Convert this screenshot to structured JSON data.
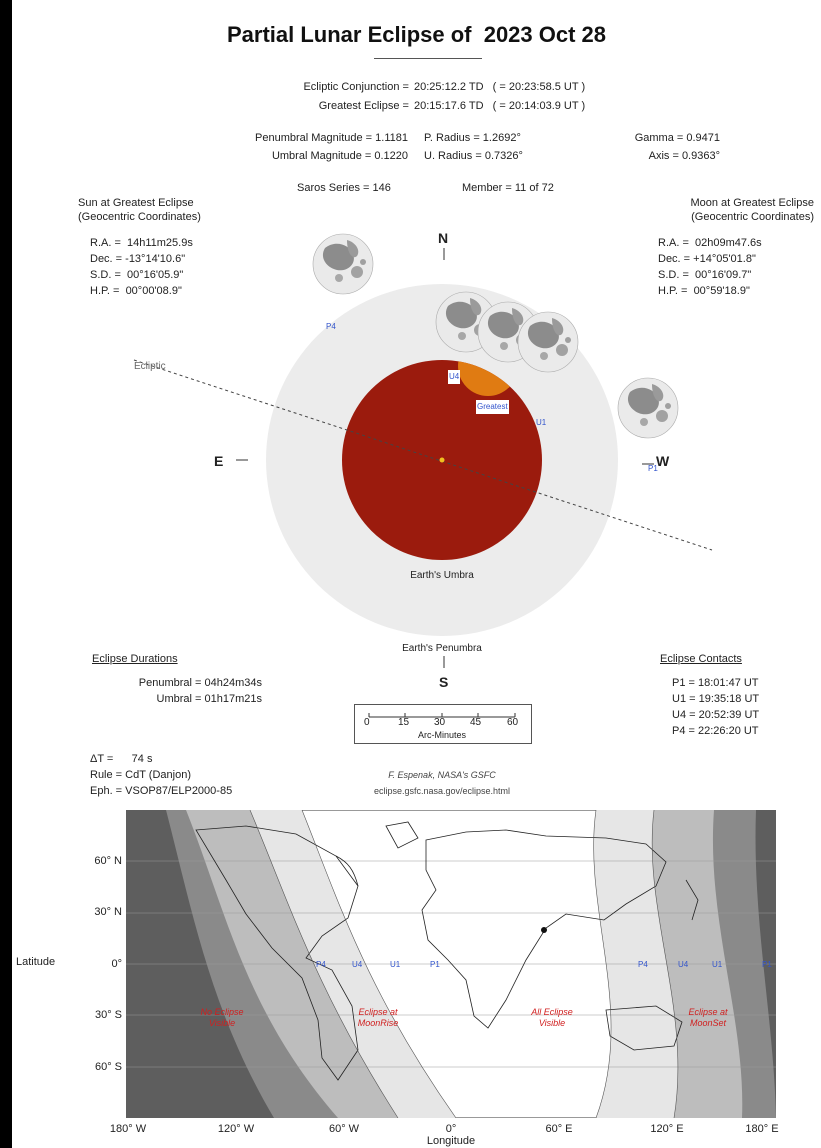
{
  "title": "Partial Lunar Eclipse of  2023 Oct 28",
  "conjunction": {
    "label": "Ecliptic Conjunction = ",
    "value": "20:25:12.2 TD   ( = 20:23:58.5 UT )"
  },
  "greatest": {
    "label": "Greatest Eclipse = ",
    "value": "20:15:17.6 TD   ( = 20:14:03.9 UT )"
  },
  "params": {
    "pen_mag": "Penumbral Magnitude = 1.1181",
    "umb_mag": "Umbral Magnitude = 0.1220",
    "p_radius": "P. Radius = 1.2692°",
    "u_radius": "U. Radius = 0.7326°",
    "gamma": "Gamma = 0.9471",
    "axis": "Axis = 0.9363°",
    "saros": "Saros Series = 146",
    "member": "Member = 11 of 72"
  },
  "sun": {
    "heading1": "Sun at Greatest Eclipse",
    "heading2": "(Geocentric Coordinates)",
    "ra": "R.A. =  14h11m25.9s",
    "dec": "Dec. = -13°14'10.6\"",
    "sd": "S.D. =  00°16'05.9\"",
    "hp": "H.P. =  00°00'08.9\""
  },
  "moon": {
    "heading1": "Moon at Greatest Eclipse",
    "heading2": "(Geocentric Coordinates)",
    "ra": "R.A. =  02h09m47.6s",
    "dec": "Dec. = +14°05'01.8\"",
    "sd": "S.D. =  00°16'09.7\"",
    "hp": "H.P. =  00°59'18.9\""
  },
  "diagram": {
    "north": "N",
    "south": "S",
    "east": "E",
    "west": "W",
    "ecliptic": "Ecliptic",
    "umbra": "Earth's Umbra",
    "penumbra": "Earth's Penumbra",
    "labels": {
      "p4": "P4",
      "u4": "U4",
      "greatest": "Greatest",
      "u1": "U1",
      "p1": "P1"
    },
    "colors": {
      "penumbra": "#ececec",
      "umbra": "#9b1b0d",
      "moon_shadow": "#e07b12"
    }
  },
  "durations": {
    "heading": "Eclipse Durations",
    "penumbral": "Penumbral = 04h24m34s",
    "umbral": "Umbral = 01h17m21s"
  },
  "scale": {
    "ticks": [
      "0",
      "15",
      "30",
      "45",
      "60"
    ],
    "label": "Arc-Minutes"
  },
  "contacts": {
    "heading": "Eclipse Contacts",
    "items": [
      "P1 = 18:01:47 UT",
      "U1 = 19:35:18 UT",
      "U4 = 20:52:39 UT",
      "P4 = 22:26:20 UT"
    ]
  },
  "misc": {
    "delta_t": "ΔT =      74 s",
    "rule": "Rule = CdT (Danjon)",
    "eph": "Eph. = VSOP87/ELP2000-85"
  },
  "credit": {
    "line1": "F. Espenak, NASA's GSFC",
    "line2": "eclipse.gsfc.nasa.gov/eclipse.html"
  },
  "map": {
    "lat_ticks": [
      "60° N",
      "30° N",
      "0°",
      "30° S",
      "60° S"
    ],
    "lon_ticks": [
      "180° W",
      "120° W",
      "60° W",
      "0°",
      "60° E",
      "120° E",
      "180° E"
    ],
    "xlabel": "Longitude",
    "ylabel": "Latitude",
    "zone_labels": {
      "no_eclipse": [
        "No Eclipse",
        "Visible"
      ],
      "moonrise": [
        "Eclipse at",
        "MoonRise"
      ],
      "all": [
        "All Eclipse",
        "Visible"
      ],
      "moonset": [
        "Eclipse at",
        "MoonSet"
      ]
    },
    "contact_labels": {
      "p4": "P4",
      "u4": "U4",
      "u1": "U1",
      "p1": "P1"
    }
  }
}
